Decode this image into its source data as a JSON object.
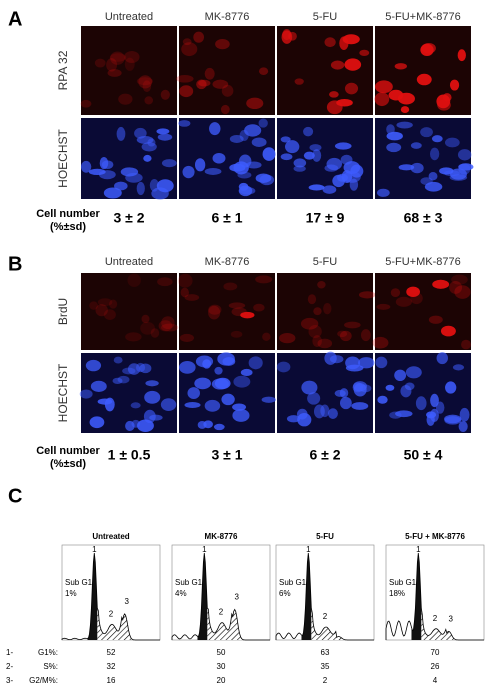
{
  "panel_a": {
    "label": "A",
    "columns": [
      "Untreated",
      "MK-8776",
      "5-FU",
      "5-FU+MK-8776"
    ],
    "row_labels": [
      "RPA 32",
      "HOECHST"
    ],
    "metric_label": [
      "Cell number",
      "(%±sd)"
    ],
    "values": [
      "3 ± 2",
      "6 ± 1",
      "17 ± 9",
      "68 ± 3"
    ]
  },
  "panel_b": {
    "label": "B",
    "columns": [
      "Untreated",
      "MK-8776",
      "5-FU",
      "5-FU+MK-8776"
    ],
    "row_labels": [
      "BrdU",
      "HOECHST"
    ],
    "metric_label": [
      "Cell number",
      "(%±sd)"
    ],
    "values": [
      "1 ± 0.5",
      "3 ± 1",
      "6 ± 2",
      "50 ± 4"
    ]
  },
  "panel_c": {
    "label": "C",
    "columns": [
      "Untreated",
      "MK-8776",
      "5-FU",
      "5-FU + MK-8776"
    ],
    "histograms": [
      {
        "peaks": [
          "1",
          "2",
          "3"
        ],
        "sub_g1_label": "Sub G1",
        "sub_g1": "1%"
      },
      {
        "peaks": [
          "1",
          "2",
          "3"
        ],
        "sub_g1_label": "Sub G1",
        "sub_g1": "4%"
      },
      {
        "peaks": [
          "1",
          "2"
        ],
        "sub_g1_label": "Sub G1",
        "sub_g1": "6%"
      },
      {
        "peaks": [
          "1",
          "2",
          "3"
        ],
        "sub_g1_label": "Sub G1",
        "sub_g1": "18%"
      }
    ],
    "table": {
      "rows": [
        {
          "num": "1-",
          "label": "G1%:",
          "values": [
            52,
            50,
            63,
            70
          ]
        },
        {
          "num": "2-",
          "label": "S%:",
          "values": [
            32,
            30,
            35,
            26
          ]
        },
        {
          "num": "3-",
          "label": "G2/M%:",
          "values": [
            16,
            20,
            2,
            4
          ]
        }
      ]
    }
  }
}
